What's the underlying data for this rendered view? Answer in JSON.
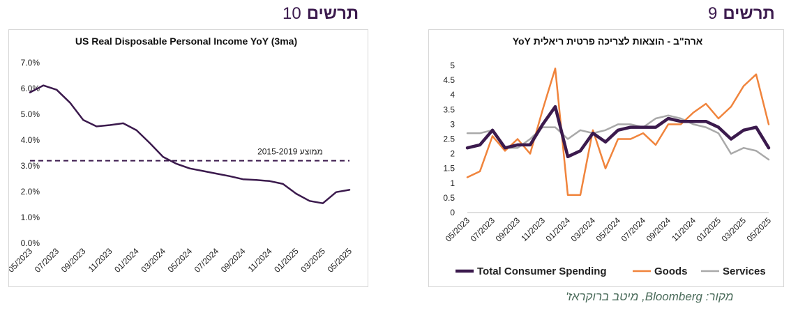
{
  "figures": {
    "left": {
      "word": "תרשים",
      "number": "10"
    },
    "right": {
      "word": "תרשים",
      "number": "9"
    }
  },
  "source_note": "מקור: Bloomberg, מיטב ברוקראז'",
  "chart_data": [
    {
      "type": "line",
      "title": "US Real Disposable Personal Income YoY (3ma)",
      "ylim": [
        0,
        7
      ],
      "y_tick_labels": [
        "0.0%",
        "1.0%",
        "2.0%",
        "3.0%",
        "4.0%",
        "5.0%",
        "6.0%",
        "7.0%"
      ],
      "y_ticks": [
        0,
        1,
        2,
        3,
        4,
        5,
        6,
        7
      ],
      "x_tick_labels": [
        "05/2023",
        "07/2023",
        "09/2023",
        "11/2023",
        "01/2024",
        "03/2024",
        "05/2024",
        "07/2024",
        "09/2024",
        "11/2024",
        "01/2025",
        "03/2025",
        "05/2025"
      ],
      "x": [
        "05/2023",
        "06/2023",
        "07/2023",
        "08/2023",
        "09/2023",
        "10/2023",
        "11/2023",
        "12/2023",
        "01/2024",
        "02/2024",
        "03/2024",
        "04/2024",
        "05/2024",
        "06/2024",
        "07/2024",
        "08/2024",
        "09/2024",
        "10/2024",
        "11/2024",
        "12/2024",
        "01/2025",
        "02/2025",
        "03/2025",
        "04/2025",
        "05/2025"
      ],
      "series": [
        {
          "color": "#3b1a4d",
          "values": [
            5.85,
            6.12,
            5.95,
            5.45,
            4.78,
            4.53,
            4.58,
            4.65,
            4.38,
            3.88,
            3.35,
            3.08,
            2.9,
            2.8,
            2.7,
            2.6,
            2.48,
            2.45,
            2.41,
            2.3,
            1.92,
            1.64,
            1.55,
            1.98,
            2.07
          ]
        }
      ],
      "reference_line": {
        "value": 3.2,
        "label": "ממוצע 2015-2019",
        "color": "#3b1a4d",
        "style": "dashed"
      },
      "grid": false
    },
    {
      "type": "line",
      "title": "ארה\"ב - הוצאות לצריכה פרטית ריאלית YoY",
      "ylim": [
        0,
        5
      ],
      "y_tick_labels": [
        "0",
        "0.5",
        "1",
        "1.5",
        "2",
        "2.5",
        "3",
        "3.5",
        "4",
        "4.5",
        "5"
      ],
      "y_ticks": [
        0,
        0.5,
        1,
        1.5,
        2,
        2.5,
        3,
        3.5,
        4,
        4.5,
        5
      ],
      "x_tick_labels": [
        "05/2023",
        "07/2023",
        "09/2023",
        "11/2023",
        "01/2024",
        "03/2024",
        "05/2024",
        "07/2024",
        "09/2024",
        "11/2024",
        "01/2025",
        "03/2025",
        "05/2025"
      ],
      "x": [
        "05/2023",
        "06/2023",
        "07/2023",
        "08/2023",
        "09/2023",
        "10/2023",
        "11/2023",
        "12/2023",
        "01/2024",
        "02/2024",
        "03/2024",
        "04/2024",
        "05/2024",
        "06/2024",
        "07/2024",
        "08/2024",
        "09/2024",
        "10/2024",
        "11/2024",
        "12/2024",
        "01/2025",
        "02/2025",
        "03/2025",
        "04/2025",
        "05/2025"
      ],
      "legend_position": "bottom",
      "grid": false,
      "series": [
        {
          "name": "Total Consumer Spending",
          "color": "#3b1a4d",
          "width": 4.5,
          "values": [
            2.2,
            2.3,
            2.8,
            2.2,
            2.3,
            2.3,
            3.0,
            3.6,
            1.9,
            2.1,
            2.7,
            2.4,
            2.8,
            2.9,
            2.9,
            2.9,
            3.2,
            3.1,
            3.1,
            3.1,
            2.9,
            2.5,
            2.8,
            2.9,
            2.2
          ]
        },
        {
          "name": "Goods",
          "color": "#f0843c",
          "width": 2.5,
          "values": [
            1.2,
            1.4,
            2.6,
            2.1,
            2.5,
            2.0,
            3.5,
            4.9,
            0.6,
            0.6,
            2.8,
            1.5,
            2.5,
            2.5,
            2.7,
            2.3,
            3.0,
            3.0,
            3.4,
            3.7,
            3.2,
            3.6,
            4.3,
            4.7,
            3.0
          ]
        },
        {
          "name": "Services",
          "color": "#a9a9a9",
          "width": 2.5,
          "values": [
            2.7,
            2.7,
            2.8,
            2.2,
            2.2,
            2.5,
            2.9,
            2.9,
            2.5,
            2.8,
            2.7,
            2.8,
            3.0,
            3.0,
            2.9,
            3.2,
            3.3,
            3.2,
            3.0,
            2.9,
            2.7,
            2.0,
            2.2,
            2.1,
            1.8
          ]
        }
      ]
    }
  ]
}
